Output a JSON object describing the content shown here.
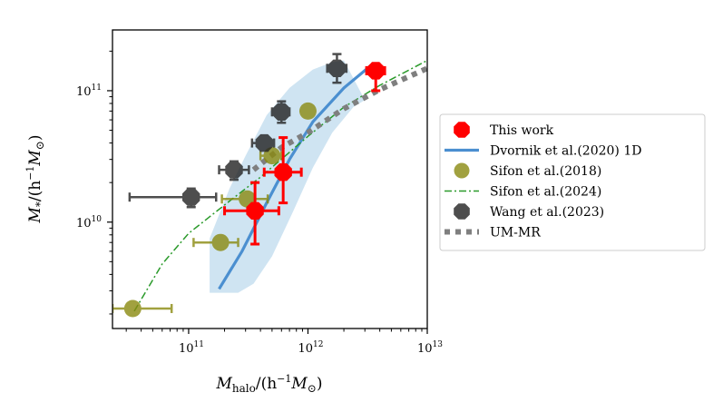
{
  "chart_data": {
    "type": "scatter",
    "xlabel_main": "M",
    "xlabel_sub": "halo",
    "xlabel_rest": "/(h",
    "xlabel_exp": "−1",
    "xlabel_end": "M",
    "xlabel_end_sub": "⊙",
    "xlabel_close": ")",
    "ylabel_main": "M",
    "ylabel_sub": "*",
    "ylabel_rest": "/(h",
    "ylabel_exp": "−1",
    "ylabel_end": "M",
    "ylabel_end_sub": "⊙",
    "ylabel_close": ")",
    "xscale": "log",
    "yscale": "log",
    "xlim": [
      23000000000.0,
      10000000000000.0
    ],
    "ylim": [
      1550000000.0,
      290000000000.0
    ],
    "x_ticks": [
      {
        "value": 100000000000.0,
        "base": "10",
        "exp": "11"
      },
      {
        "value": 1000000000000.0,
        "base": "10",
        "exp": "12"
      },
      {
        "value": 10000000000000.0,
        "base": "10",
        "exp": "13"
      }
    ],
    "y_ticks": [
      {
        "value": 10000000000.0,
        "base": "10",
        "exp": "10"
      },
      {
        "value": 100000000000.0,
        "base": "10",
        "exp": "11"
      }
    ],
    "legend_position": "right",
    "series": [
      {
        "name": "This work",
        "kind": "points",
        "marker": "octagon",
        "color": "#ff0000",
        "points": [
          {
            "x": 360000000000.0,
            "y": 12200000000.0,
            "xerr": [
              200000000000.0,
              570000000000.0
            ],
            "yerr": [
              6800000000.0,
              20000000000.0
            ]
          },
          {
            "x": 620000000000.0,
            "y": 24000000000.0,
            "xerr": [
              430000000000.0,
              880000000000.0
            ],
            "yerr": [
              14000000000.0,
              44000000000.0
            ]
          },
          {
            "x": 3700000000000.0,
            "y": 142000000000.0,
            "xerr": [
              3100000000000.0,
              4400000000000.0
            ],
            "yerr": [
              100000000000.0,
              160000000000.0
            ]
          }
        ]
      },
      {
        "name": "Dvornik et al.(2020) 1D",
        "kind": "line_with_band",
        "color": "#4b8fd0",
        "band_color": "#c7dff0",
        "line": [
          [
            180000000000.0,
            3100000000.0
          ],
          [
            280000000000.0,
            6000000000.0
          ],
          [
            450000000000.0,
            14000000000.0
          ],
          [
            700000000000.0,
            30000000000.0
          ],
          [
            1100000000000.0,
            58000000000.0
          ],
          [
            2000000000000.0,
            105000000000.0
          ],
          [
            3500000000000.0,
            160000000000.0
          ]
        ],
        "band_upper": [
          [
            150000000000.0,
            7500000000.0
          ],
          [
            220000000000.0,
            18000000000.0
          ],
          [
            300000000000.0,
            32000000000.0
          ],
          [
            450000000000.0,
            65000000000.0
          ],
          [
            700000000000.0,
            105000000000.0
          ],
          [
            1100000000000.0,
            145000000000.0
          ],
          [
            1600000000000.0,
            165000000000.0
          ],
          [
            2000000000000.0,
            170000000000.0
          ]
        ],
        "band_lower": [
          [
            150000000000.0,
            2900000000.0
          ],
          [
            260000000000.0,
            2900000000.0
          ],
          [
            350000000000.0,
            3400000000.0
          ],
          [
            500000000000.0,
            5500000000.0
          ],
          [
            750000000000.0,
            12000000000.0
          ],
          [
            1100000000000.0,
            26000000000.0
          ],
          [
            1600000000000.0,
            48000000000.0
          ],
          [
            2400000000000.0,
            75000000000.0
          ],
          [
            3000000000000.0,
            85000000000.0
          ]
        ]
      },
      {
        "name": "Sifon et al.(2018)",
        "kind": "points",
        "marker": "circle",
        "color": "#8a8a10",
        "alpha": 0.8,
        "points": [
          {
            "x": 34000000000.0,
            "y": 2200000000.0,
            "xerr": [
              23000000000.0,
              72000000000.0
            ],
            "yerr": null
          },
          {
            "x": 185000000000.0,
            "y": 7000000000.0,
            "xerr": [
              110000000000.0,
              260000000000.0
            ],
            "yerr": null
          },
          {
            "x": 310000000000.0,
            "y": 15000000000.0,
            "xerr": [
              190000000000.0,
              460000000000.0
            ],
            "yerr": null
          },
          {
            "x": 500000000000.0,
            "y": 32000000000.0,
            "xerr": [
              400000000000.0,
              600000000000.0
            ],
            "yerr": null
          },
          {
            "x": 1000000000000.0,
            "y": 70000000000.0,
            "xerr": null,
            "yerr": null
          }
        ]
      },
      {
        "name": "Sifon et al.(2024)",
        "kind": "line",
        "dash": "dashdot",
        "color": "#2a9a2a",
        "line": [
          [
            35000000000.0,
            2100000000.0
          ],
          [
            60000000000.0,
            4800000000.0
          ],
          [
            100000000000.0,
            8200000000.0
          ],
          [
            200000000000.0,
            13500000000.0
          ],
          [
            400000000000.0,
            22000000000.0
          ],
          [
            700000000000.0,
            34000000000.0
          ],
          [
            1000000000000.0,
            45000000000.0
          ],
          [
            2000000000000.0,
            75000000000.0
          ],
          [
            4000000000000.0,
            110000000000.0
          ],
          [
            10000000000000.0,
            170000000000.0
          ]
        ]
      },
      {
        "name": "Wang et al.(2023)",
        "kind": "points",
        "marker": "octagon",
        "color": "#222222",
        "alpha": 0.8,
        "points": [
          {
            "x": 105000000000.0,
            "y": 15500000000.0,
            "xerr": [
              32000000000.0,
              170000000000.0
            ],
            "yerr": [
              13000000000.0,
              18000000000.0
            ]
          },
          {
            "x": 240000000000.0,
            "y": 25000000000.0,
            "xerr": [
              180000000000.0,
              320000000000.0
            ],
            "yerr": [
              21000000000.0,
              29000000000.0
            ]
          },
          {
            "x": 430000000000.0,
            "y": 40000000000.0,
            "xerr": [
              340000000000.0,
              520000000000.0
            ],
            "yerr": [
              35000000000.0,
              45000000000.0
            ]
          },
          {
            "x": 600000000000.0,
            "y": 69000000000.0,
            "xerr": [
              500000000000.0,
              700000000000.0
            ],
            "yerr": [
              57000000000.0,
              83000000000.0
            ]
          },
          {
            "x": 1750000000000.0,
            "y": 148000000000.0,
            "xerr": [
              1450000000000.0,
              2100000000000.0
            ],
            "yerr": [
              115000000000.0,
              190000000000.0
            ]
          }
        ]
      },
      {
        "name": "UM-MR",
        "kind": "line",
        "dash": "dotted",
        "color": "#7f7f7f",
        "line": [
          [
            350000000000.0,
            25000000000.0
          ],
          [
            600000000000.0,
            37000000000.0
          ],
          [
            1000000000000.0,
            48000000000.0
          ],
          [
            2000000000000.0,
            73000000000.0
          ],
          [
            4000000000000.0,
            102000000000.0
          ],
          [
            10000000000000.0,
            148000000000.0
          ]
        ]
      }
    ]
  }
}
